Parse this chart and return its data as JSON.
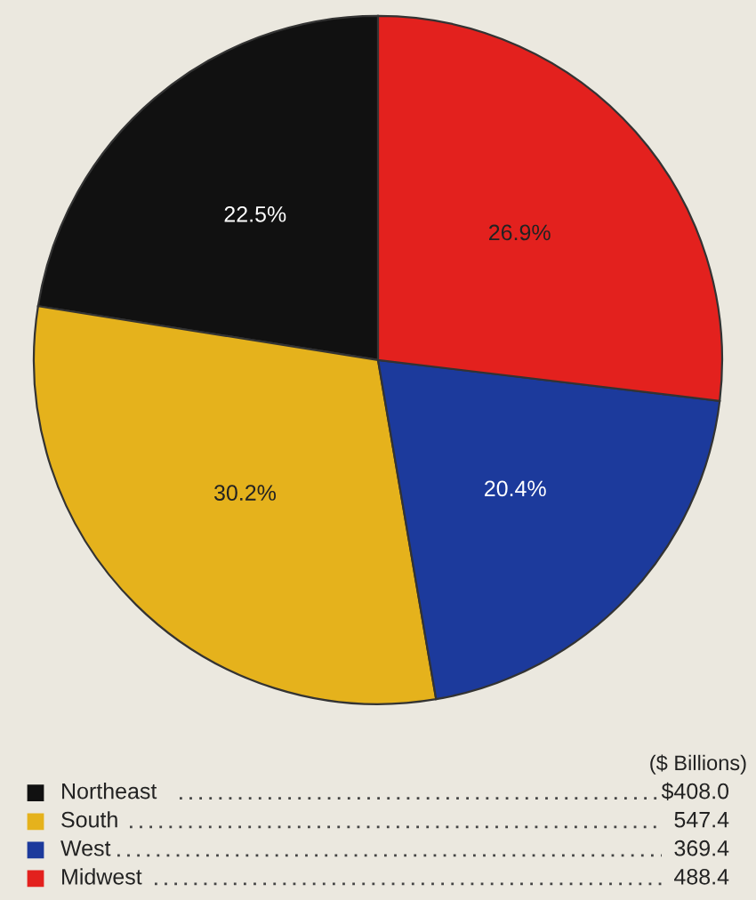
{
  "chart_data": {
    "type": "pie",
    "categories": [
      "Northeast",
      "South",
      "West",
      "Midwest"
    ],
    "values": [
      22.5,
      30.2,
      20.4,
      26.9
    ],
    "value_labels": [
      "22.5%",
      "30.2%",
      "20.4%",
      "26.9%"
    ],
    "colors": [
      "#111111",
      "#e5b21c",
      "#1c3a9c",
      "#e3211e"
    ],
    "annotations": [
      "($ Billions)",
      "$408.0",
      "547.4",
      "369.4",
      "488.4"
    ],
    "legend": "bottom"
  }
}
